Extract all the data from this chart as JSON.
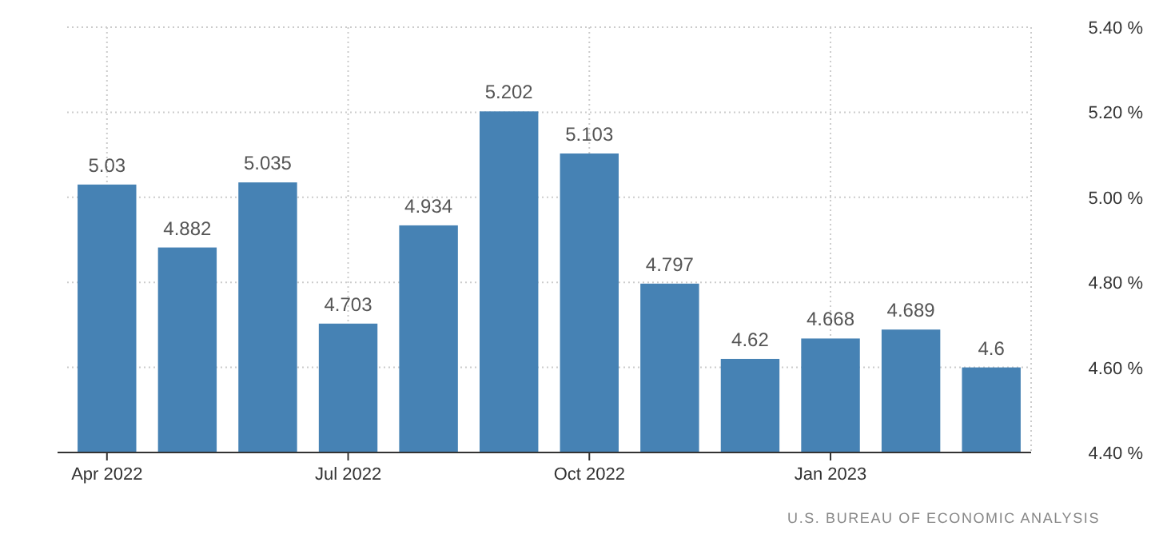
{
  "chart_data": {
    "type": "bar",
    "categories": [
      "Apr 2022",
      null,
      null,
      "Jul 2022",
      null,
      null,
      "Oct 2022",
      null,
      null,
      "Jan 2023",
      null,
      null
    ],
    "values": [
      5.03,
      4.882,
      5.035,
      4.703,
      4.934,
      5.202,
      5.103,
      4.797,
      4.62,
      4.668,
      4.689,
      4.6
    ],
    "color": "#4682b4",
    "data_labels": true,
    "grid": true,
    "ylim": [
      4.4,
      5.4
    ],
    "yticks": [
      {
        "value": 4.4,
        "label": "4.40 %"
      },
      {
        "value": 4.6,
        "label": "4.60 %"
      },
      {
        "value": 4.8,
        "label": "4.80 %"
      },
      {
        "value": 5.0,
        "label": "5.00 %"
      },
      {
        "value": 5.2,
        "label": "5.20 %"
      },
      {
        "value": 5.4,
        "label": "5.40 %"
      }
    ],
    "annotations": [
      "U.S. BUREAU OF ECONOMIC ANALYSIS"
    ]
  }
}
